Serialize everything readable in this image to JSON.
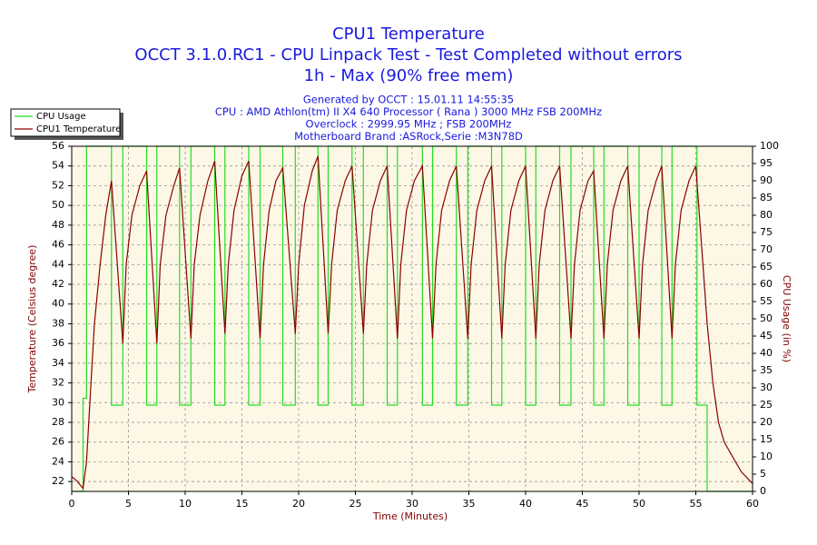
{
  "chart_data": {
    "type": "line",
    "title": [
      "CPU1 Temperature",
      "OCCT 3.1.0.RC1 - CPU Linpack Test - Test Completed without errors",
      "1h - Max (90% free mem)"
    ],
    "subtitle": [
      "Generated by OCCT : 15.01.11 14:55:35",
      "CPU : AMD Athlon(tm) II X4 640 Processor ( Rana ) 3000 MHz FSB 200MHz",
      "Overclock : 2999.95 MHz ; FSB 200MHz",
      "Motherboard Brand :ASRock,Serie :M3N78D"
    ],
    "xlabel": "Time (Minutes)",
    "ylabel": "Temperature (Celsius degree)",
    "y2label": "CPU Usage (in %)",
    "xlim": [
      0,
      60
    ],
    "xticks": [
      0,
      5,
      10,
      15,
      20,
      25,
      30,
      35,
      40,
      45,
      50,
      55,
      60
    ],
    "ylim": [
      21,
      56
    ],
    "yticks": [
      22,
      24,
      26,
      28,
      30,
      32,
      34,
      36,
      38,
      40,
      42,
      44,
      46,
      48,
      50,
      52,
      54,
      56
    ],
    "y2lim": [
      0,
      100
    ],
    "y2ticks": [
      0,
      5,
      10,
      15,
      20,
      25,
      30,
      35,
      40,
      45,
      50,
      55,
      60,
      65,
      70,
      75,
      80,
      85,
      90,
      95,
      100
    ],
    "grid": true,
    "legend": "top-left",
    "series": [
      {
        "name": "CPU Usage",
        "color": "#22dd22",
        "axis": "y2",
        "x": [
          0,
          1,
          1,
          1.3,
          1.3,
          3.5,
          3.5,
          4.5,
          4.5,
          6.6,
          6.6,
          7.5,
          7.5,
          9.5,
          9.5,
          10.5,
          10.5,
          12.6,
          12.6,
          13.5,
          13.5,
          15.6,
          15.6,
          16.6,
          16.6,
          18.6,
          18.6,
          19.7,
          19.7,
          21.7,
          21.7,
          22.6,
          22.6,
          24.7,
          24.7,
          25.7,
          25.7,
          27.8,
          27.8,
          28.7,
          28.7,
          30.9,
          30.9,
          31.8,
          31.8,
          33.9,
          33.9,
          34.9,
          34.9,
          37,
          37,
          37.9,
          37.9,
          40,
          40,
          40.9,
          40.9,
          43,
          43,
          44,
          44,
          46,
          46,
          46.9,
          46.9,
          49,
          49,
          50,
          50,
          52,
          52,
          52.9,
          52.9,
          55.1,
          55.1,
          56,
          56,
          60
        ],
        "values": [
          0,
          0,
          27,
          27,
          100,
          100,
          25,
          25,
          100,
          100,
          25,
          25,
          100,
          100,
          25,
          25,
          100,
          100,
          25,
          25,
          100,
          100,
          25,
          25,
          100,
          100,
          25,
          25,
          100,
          100,
          25,
          25,
          100,
          100,
          25,
          25,
          100,
          100,
          25,
          25,
          100,
          100,
          25,
          25,
          100,
          100,
          25,
          25,
          100,
          100,
          25,
          25,
          100,
          100,
          25,
          25,
          100,
          100,
          25,
          25,
          100,
          100,
          25,
          25,
          100,
          100,
          25,
          25,
          100,
          100,
          25,
          25,
          100,
          100,
          25,
          25,
          0,
          0
        ]
      },
      {
        "name": "CPU1 Temperature",
        "color": "#8b0000",
        "axis": "y",
        "x": [
          0,
          0.5,
          1,
          1.3,
          1.6,
          2,
          2.5,
          3,
          3.5,
          4.5,
          4.8,
          5.3,
          6,
          6.6,
          7.5,
          7.8,
          8.3,
          9,
          9.5,
          10.5,
          10.8,
          11.3,
          12,
          12.6,
          13.5,
          13.8,
          14.3,
          15,
          15.6,
          16.6,
          16.9,
          17.4,
          18,
          18.6,
          19.7,
          20,
          20.5,
          21.2,
          21.7,
          22.6,
          22.9,
          23.4,
          24.1,
          24.7,
          25.7,
          26,
          26.5,
          27.2,
          27.8,
          28.7,
          29,
          29.5,
          30.2,
          30.9,
          31.8,
          32.1,
          32.6,
          33.3,
          33.9,
          34.9,
          35.2,
          35.7,
          36.4,
          37,
          37.9,
          38.2,
          38.7,
          39.4,
          40,
          40.9,
          41.2,
          41.7,
          42.4,
          43,
          44,
          44.3,
          44.8,
          45.5,
          46,
          46.9,
          47.2,
          47.7,
          48.4,
          49,
          50,
          50.3,
          50.8,
          51.5,
          52,
          52.9,
          53.2,
          53.7,
          54.4,
          55,
          55.5,
          56,
          56.5,
          57,
          57.5,
          58,
          59,
          60
        ],
        "values": [
          22.5,
          22,
          21.3,
          24,
          30,
          38,
          44,
          49,
          52.5,
          36,
          44,
          49,
          52,
          53.5,
          36,
          44,
          49,
          52,
          53.8,
          36.5,
          44,
          49,
          52.5,
          54.5,
          37,
          44,
          49.5,
          53,
          54.5,
          36.5,
          44,
          49.5,
          52.5,
          53.8,
          37,
          44,
          50,
          53.5,
          55,
          37,
          44,
          49.5,
          52.5,
          54,
          37,
          44,
          49.5,
          52.5,
          54,
          36.5,
          44,
          49.5,
          52.5,
          54,
          36.5,
          44,
          49.5,
          52.5,
          54,
          36.5,
          44,
          49.5,
          52.5,
          54,
          36.5,
          44,
          49.5,
          52.5,
          54,
          36.5,
          44,
          49.5,
          52.5,
          54,
          36.5,
          44,
          49.5,
          52.5,
          53.5,
          36.5,
          44,
          49.5,
          52.5,
          54,
          36.5,
          44,
          49.5,
          52.5,
          54,
          36.5,
          44,
          49.5,
          52.5,
          54,
          46,
          38,
          32,
          28,
          26,
          25,
          23,
          21.8
        ]
      }
    ]
  }
}
